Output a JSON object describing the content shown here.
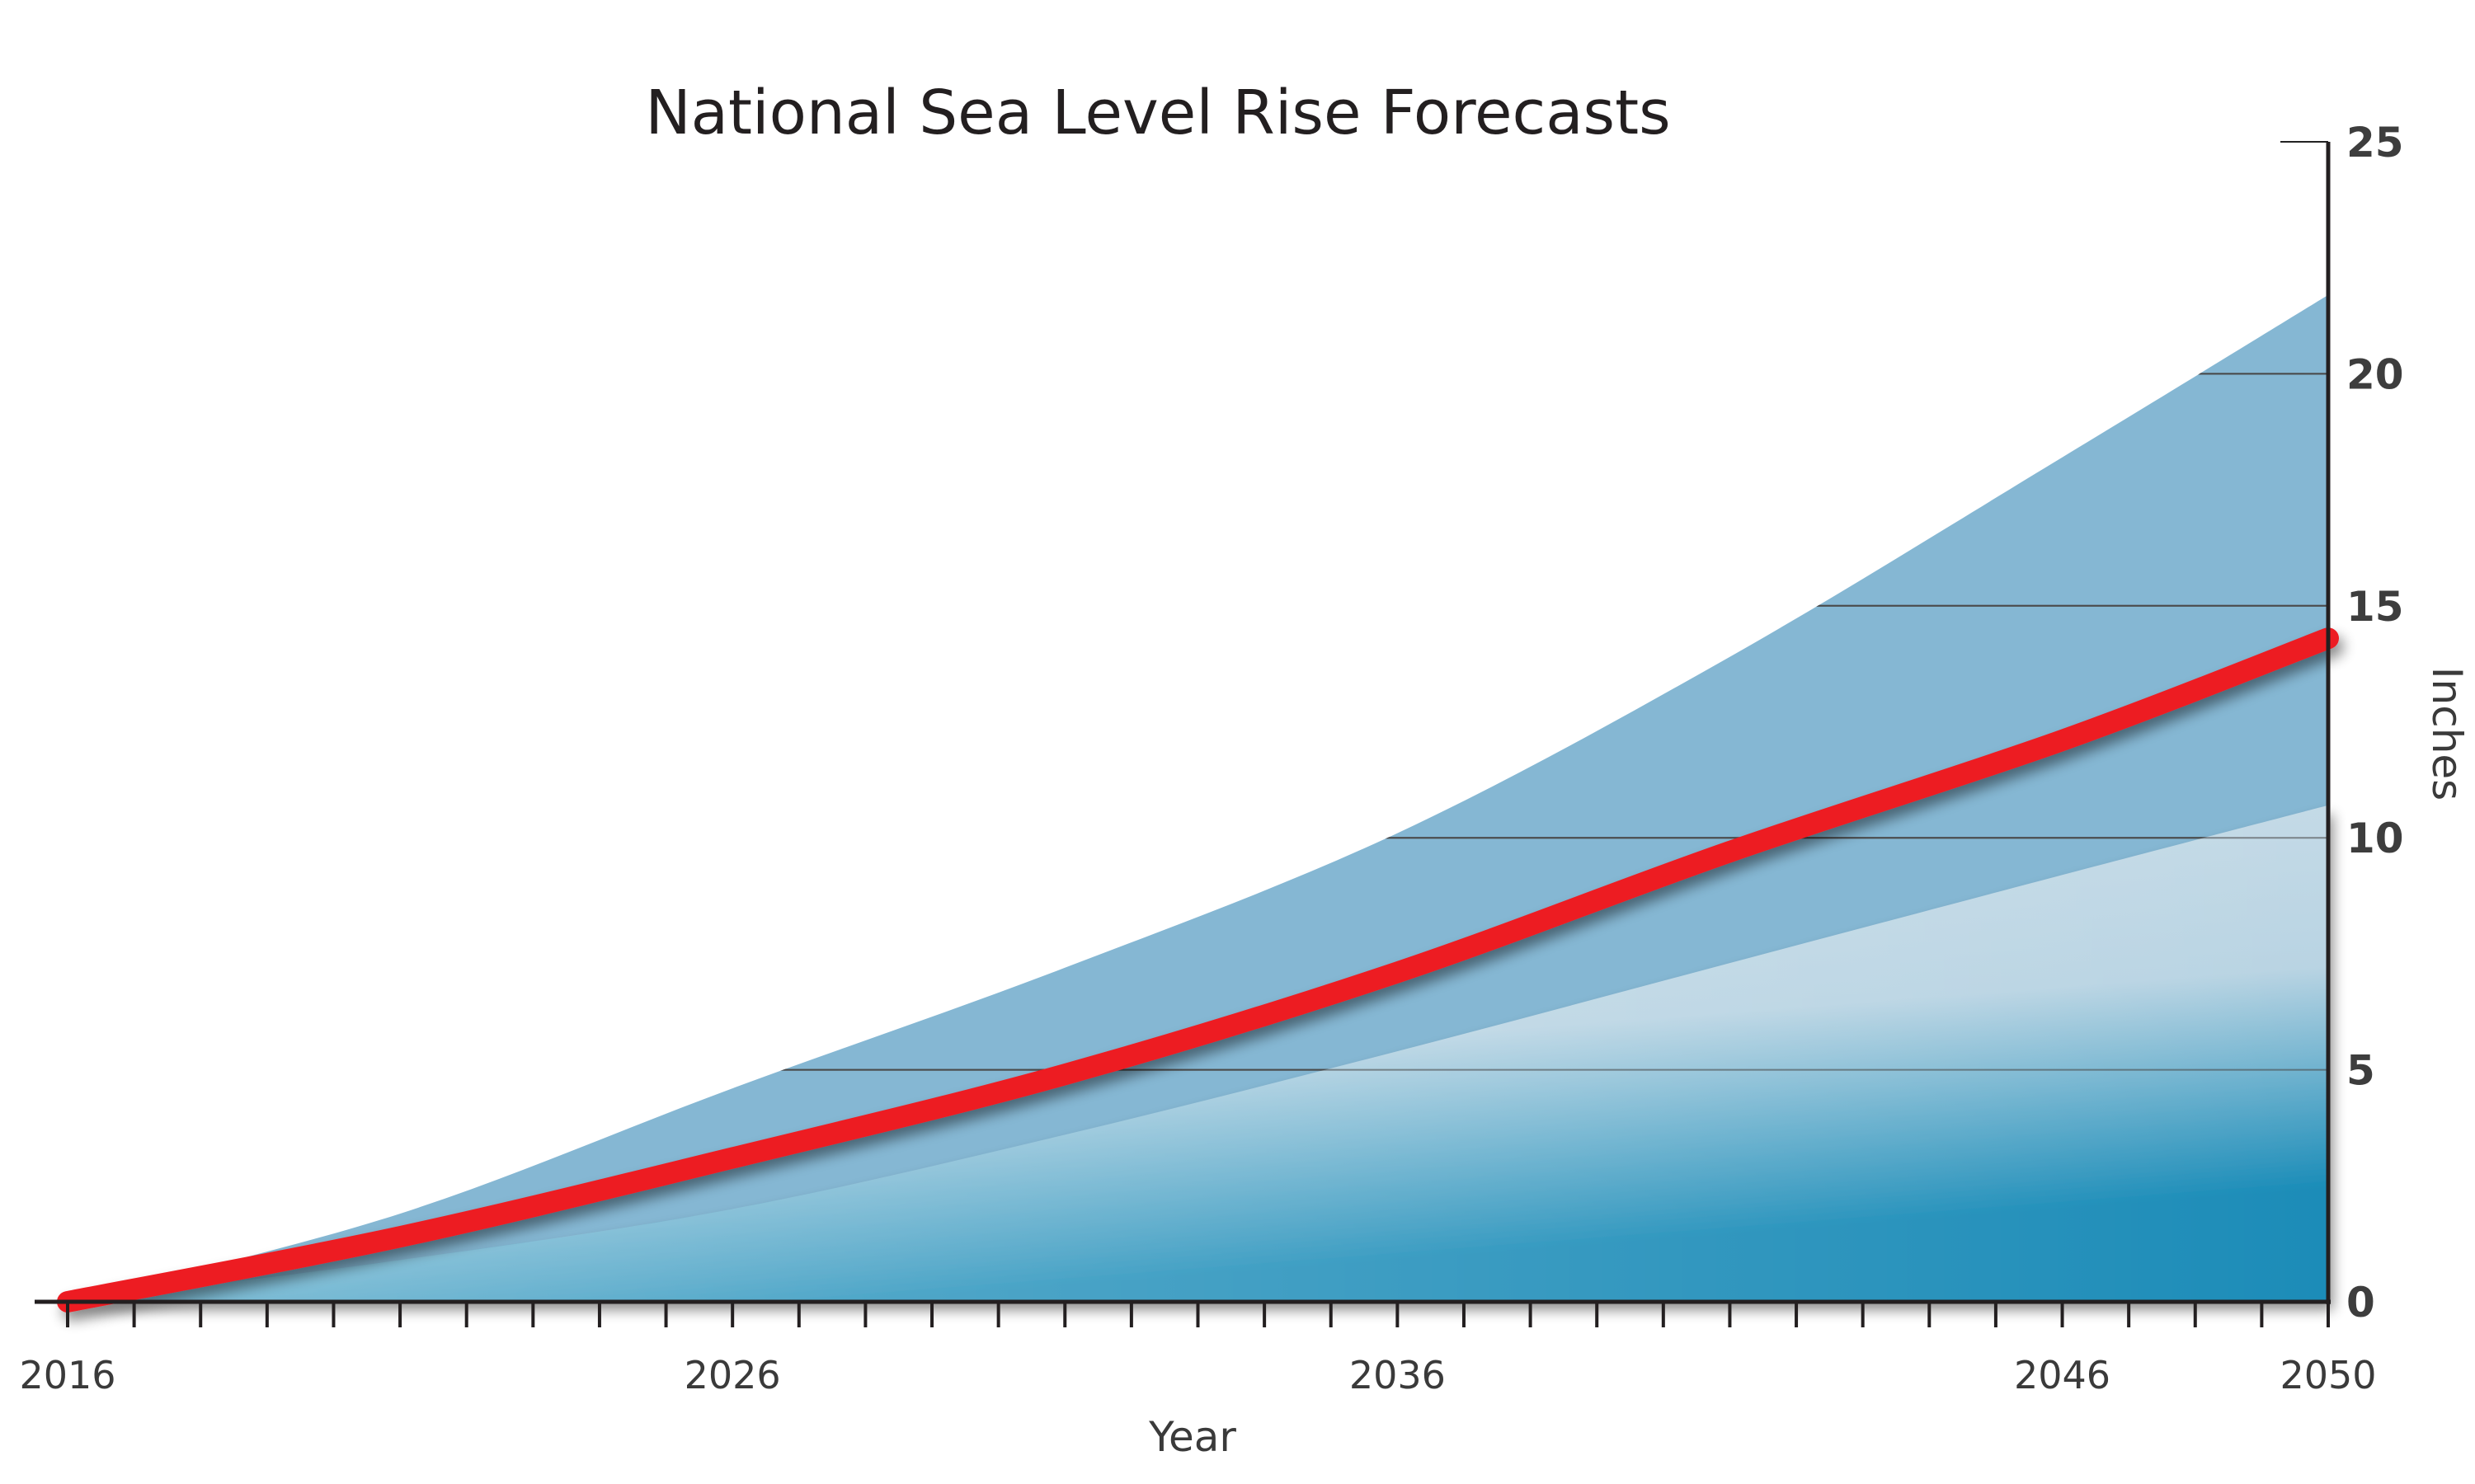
{
  "chart_data": {
    "type": "area",
    "title": "National Sea Level Rise Forecasts",
    "xlabel": "Year",
    "ylabel": "Inches",
    "xlim": [
      2016,
      2050
    ],
    "ylim": [
      0,
      25
    ],
    "x_tick_labels": [
      "2016",
      "2026",
      "2036",
      "2046",
      "2050"
    ],
    "y_tick_labels": [
      "0",
      "5",
      "10",
      "15",
      "20",
      "25"
    ],
    "x_minor_ticks": "every year",
    "x": [
      2016,
      2021,
      2026,
      2031,
      2036,
      2041,
      2046,
      2050
    ],
    "series": [
      {
        "role": "upper-bound",
        "values": [
          0,
          1.9,
          4.6,
          7.2,
          10.1,
          13.9,
          18.2,
          21.7
        ],
        "color": "#85b7d3"
      },
      {
        "role": "lower-bound",
        "values": [
          0,
          0.9,
          2.0,
          3.6,
          5.4,
          7.3,
          9.2,
          10.7
        ],
        "color": "#c5dbe7"
      },
      {
        "role": "central-forecast",
        "values": [
          0,
          1.4,
          3.1,
          4.9,
          7.1,
          9.7,
          12.1,
          14.3
        ],
        "color": "#ed1c24"
      }
    ],
    "lower_fill_gradient_end": "#1a8cb8",
    "grid": "horizontal lines inside band",
    "y_axis_side": "right",
    "legend": "none"
  }
}
